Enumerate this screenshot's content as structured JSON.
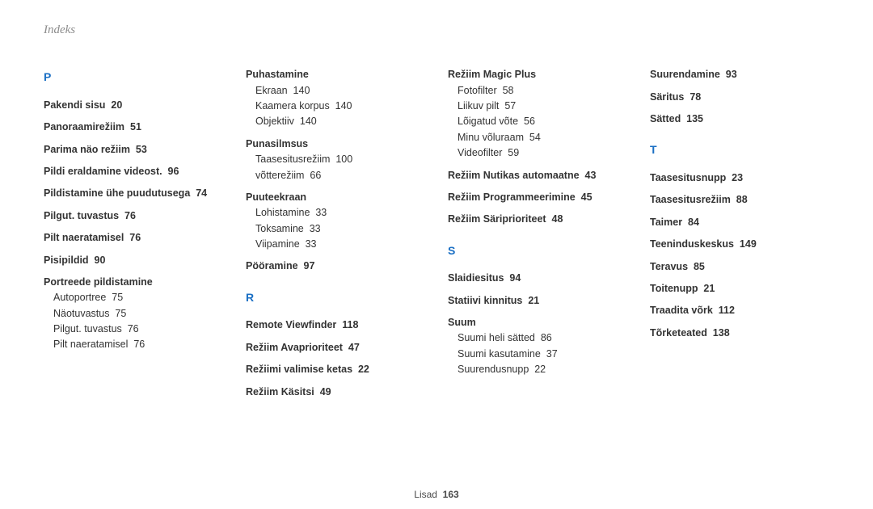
{
  "header": {
    "title": "Indeks"
  },
  "footer": {
    "label": "Lisad",
    "page": "163"
  },
  "col1": {
    "letter": "P",
    "entries": [
      {
        "t": "Pakendi sisu  20"
      },
      {
        "t": "Panoraamirežiim  51"
      },
      {
        "t": "Parima näo režiim  53"
      },
      {
        "t": "Pildi eraldamine videost.  96"
      },
      {
        "t": "Pildistamine ühe puudutusega  74"
      },
      {
        "t": "Pilgut. tuvastus  76"
      },
      {
        "t": "Pilt naeratamisel  76"
      },
      {
        "t": "Pisipildid  90"
      }
    ],
    "group": {
      "head": "Portreede pildistamine",
      "subs": [
        "Autoportree  75",
        "Näotuvastus  75",
        "Pilgut. tuvastus  76",
        "Pilt naeratamisel  76"
      ]
    }
  },
  "col2": {
    "g1": {
      "head": "Puhastamine",
      "subs": [
        "Ekraan  140",
        "Kaamera korpus  140",
        "Objektiiv  140"
      ]
    },
    "g2": {
      "head": "Punasilmsus",
      "subs": [
        "Taasesitusrežiim  100",
        "võtterežiim  66"
      ]
    },
    "g3": {
      "head": "Puuteekraan",
      "subs": [
        "Lohistamine  33",
        "Toksamine  33",
        "Viipamine  33"
      ]
    },
    "e1": "Pööramine  97",
    "letter": "R",
    "entriesR": [
      "Remote Viewfinder  118",
      "Režiim Avaprioriteet  47",
      "Režiimi valimise ketas  22",
      "Režiim Käsitsi  49"
    ]
  },
  "col3": {
    "g1": {
      "head": "Režiim Magic Plus",
      "subs": [
        "Fotofilter  58",
        "Liikuv pilt  57",
        "Lõigatud võte  56",
        "Minu võluraam  54",
        "Videofilter  59"
      ]
    },
    "entriesTop": [
      "Režiim Nutikas automaatne  43",
      "Režiim Programmeerimine  45",
      "Režiim Säriprioriteet  48"
    ],
    "letter": "S",
    "entriesS": [
      "Slaidiesitus  94",
      "Statiivi kinnitus  21"
    ],
    "g2": {
      "head": "Suum",
      "subs": [
        "Suumi heli sätted  86",
        "Suumi kasutamine  37",
        "Suurendusnupp  22"
      ]
    }
  },
  "col4": {
    "entriesTop": [
      "Suurendamine  93",
      "Säritus  78",
      "Sätted  135"
    ],
    "letter": "T",
    "entriesT": [
      "Taasesitusnupp  23",
      "Taasesitusrežiim  88",
      "Taimer  84",
      "Teeninduskeskus  149",
      "Teravus  85",
      "Toitenupp  21",
      "Traadita võrk  112",
      "Tõrketeated  138"
    ]
  }
}
